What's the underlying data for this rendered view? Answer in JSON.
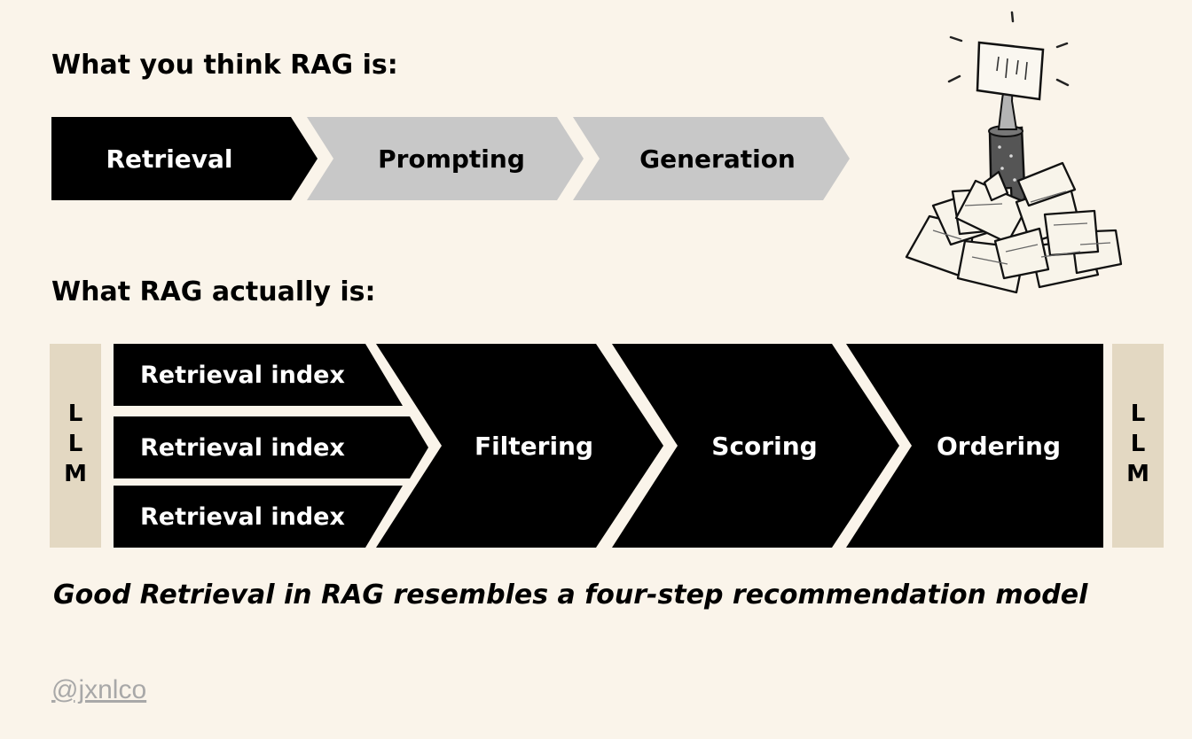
{
  "headings": {
    "think": "What you think RAG is:",
    "actual": "What RAG actually is:"
  },
  "naive_pipeline": [
    "Retrieval",
    "Prompting",
    "Generation"
  ],
  "actual_pipeline": {
    "llm_left": "LLM",
    "llm_right": "LLM",
    "indexes": [
      "Retrieval index",
      "Retrieval index",
      "Retrieval index"
    ],
    "stages": [
      "Filtering",
      "Scoring",
      "Ordering"
    ]
  },
  "caption": "Good Retrieval in RAG resembles a four-step recommendation model",
  "handle": "@jxnlco",
  "colors": {
    "background": "#faf4ea",
    "black": "#000000",
    "gray": "#c8c8c8",
    "llm_bar": "#e3d8c2",
    "handle": "#a8a8a8"
  },
  "illustration": {
    "icon": "paper-pile-with-raised-hand-icon"
  }
}
